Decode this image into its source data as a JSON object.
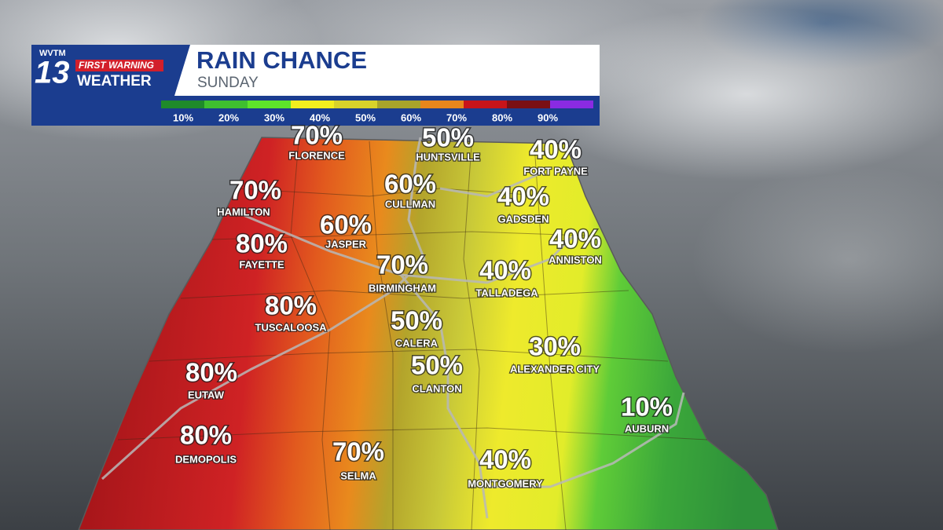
{
  "logo": {
    "station": "WVTM",
    "channel": "13",
    "brand_top": "FIRST WARNING",
    "brand_bottom": "WEATHER"
  },
  "header": {
    "title": "RAIN CHANCE",
    "subtitle": "SUNDAY"
  },
  "legend": {
    "colors": [
      "#1f8a2a",
      "#3fbf2f",
      "#5ee52a",
      "#f2ee1e",
      "#d8d22a",
      "#a8a42a",
      "#e8861c",
      "#c8141a",
      "#7a0f14",
      "#8a2be2"
    ],
    "labels": [
      "10%",
      "20%",
      "30%",
      "40%",
      "50%",
      "60%",
      "70%",
      "80%",
      "90%"
    ]
  },
  "cities": [
    {
      "chance": "70%",
      "name": "FLORENCE"
    },
    {
      "chance": "50%",
      "name": "HUNTSVILLE"
    },
    {
      "chance": "40%",
      "name": "FORT PAYNE"
    },
    {
      "chance": "60%",
      "name": "CULLMAN"
    },
    {
      "chance": "70%",
      "name": "HAMILTON"
    },
    {
      "chance": "40%",
      "name": "GADSDEN"
    },
    {
      "chance": "60%",
      "name": "JASPER"
    },
    {
      "chance": "40%",
      "name": "ANNISTON"
    },
    {
      "chance": "80%",
      "name": "FAYETTE"
    },
    {
      "chance": "70%",
      "name": "BIRMINGHAM"
    },
    {
      "chance": "40%",
      "name": "TALLADEGA"
    },
    {
      "chance": "80%",
      "name": "TUSCALOOSA"
    },
    {
      "chance": "50%",
      "name": "CALERA"
    },
    {
      "chance": "30%",
      "name": "ALEXANDER CITY"
    },
    {
      "chance": "50%",
      "name": "CLANTON"
    },
    {
      "chance": "80%",
      "name": "EUTAW"
    },
    {
      "chance": "10%",
      "name": "AUBURN"
    },
    {
      "chance": "80%",
      "name": "DEMOPOLIS"
    },
    {
      "chance": "70%",
      "name": "SELMA"
    },
    {
      "chance": "40%",
      "name": "MONTGOMERY"
    }
  ]
}
